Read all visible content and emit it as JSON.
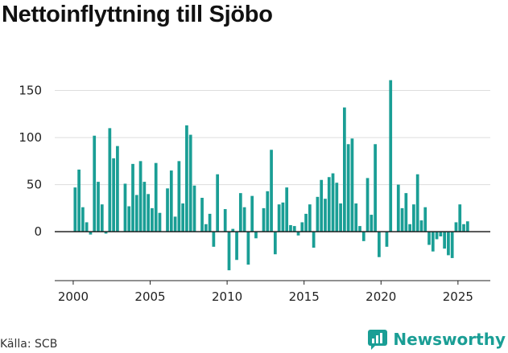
{
  "title": "Nettoinflyttning till Sjöbo",
  "source": "Källa: SCB",
  "brand": {
    "name": "Newsworthy"
  },
  "colors": {
    "bar": "#1a9e95",
    "brand": "#1a9e95",
    "grid": "#dddddd",
    "zero": "#222222"
  },
  "chart_data": {
    "type": "bar",
    "title": "Nettoinflyttning till Sjöbo",
    "xlabel": "",
    "ylabel": "",
    "ylim": [
      -52,
      165
    ],
    "xlim": [
      1998.8,
      2027.1
    ],
    "yticks": [
      0,
      50,
      100,
      150
    ],
    "xticks": [
      2000,
      2005,
      2010,
      2015,
      2020,
      2025
    ],
    "grid": true,
    "legend": "none",
    "frequency": "quarterly",
    "x": [
      "2000Q1",
      "2000Q2",
      "2000Q3",
      "2000Q4",
      "2001Q1",
      "2001Q2",
      "2001Q3",
      "2001Q4",
      "2002Q1",
      "2002Q2",
      "2002Q3",
      "2002Q4",
      "2003Q1",
      "2003Q2",
      "2003Q3",
      "2003Q4",
      "2004Q1",
      "2004Q2",
      "2004Q3",
      "2004Q4",
      "2005Q1",
      "2005Q2",
      "2005Q3",
      "2005Q4",
      "2006Q1",
      "2006Q2",
      "2006Q3",
      "2006Q4",
      "2007Q1",
      "2007Q2",
      "2007Q3",
      "2007Q4",
      "2008Q1",
      "2008Q2",
      "2008Q3",
      "2008Q4",
      "2009Q1",
      "2009Q2",
      "2009Q3",
      "2009Q4",
      "2010Q1",
      "2010Q2",
      "2010Q3",
      "2010Q4",
      "2011Q1",
      "2011Q2",
      "2011Q3",
      "2011Q4",
      "2012Q1",
      "2012Q2",
      "2012Q3",
      "2012Q4",
      "2013Q1",
      "2013Q2",
      "2013Q3",
      "2013Q4",
      "2014Q1",
      "2014Q2",
      "2014Q3",
      "2014Q4",
      "2015Q1",
      "2015Q2",
      "2015Q3",
      "2015Q4",
      "2016Q1",
      "2016Q2",
      "2016Q3",
      "2016Q4",
      "2017Q1",
      "2017Q2",
      "2017Q3",
      "2017Q4",
      "2018Q1",
      "2018Q2",
      "2018Q3",
      "2018Q4",
      "2019Q1",
      "2019Q2",
      "2019Q3",
      "2019Q4",
      "2020Q1",
      "2020Q2",
      "2020Q3",
      "2020Q4",
      "2021Q1",
      "2021Q2",
      "2021Q3",
      "2021Q4",
      "2022Q1",
      "2022Q2",
      "2022Q3",
      "2022Q4",
      "2023Q1",
      "2023Q2",
      "2023Q3",
      "2023Q4",
      "2024Q1",
      "2024Q2",
      "2024Q3",
      "2024Q4",
      "2025Q1",
      "2025Q2",
      "2025Q3"
    ],
    "values": [
      47,
      66,
      26,
      10,
      -3,
      102,
      53,
      29,
      -2,
      110,
      78,
      91,
      0,
      51,
      27,
      72,
      39,
      75,
      53,
      40,
      25,
      73,
      20,
      0,
      46,
      65,
      16,
      75,
      30,
      113,
      103,
      49,
      0,
      36,
      8,
      19,
      -16,
      61,
      0,
      24,
      -41,
      3,
      -30,
      41,
      26,
      -35,
      38,
      -7,
      0,
      25,
      43,
      87,
      -24,
      29,
      31,
      47,
      7,
      6,
      -4,
      10,
      19,
      29,
      -17,
      37,
      55,
      35,
      58,
      62,
      52,
      30,
      132,
      93,
      99,
      30,
      6,
      -10,
      57,
      18,
      93,
      -27,
      0,
      -16,
      161,
      0,
      50,
      25,
      41,
      8,
      29,
      61,
      12,
      26,
      -14,
      -21,
      -8,
      -5,
      -18,
      -25,
      -28,
      10,
      29,
      8,
      11
    ]
  }
}
